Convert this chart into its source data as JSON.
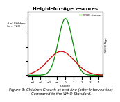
{
  "title": "Height-for-Age z-scores",
  "xlabel": "Z-score",
  "ylabel_left": "# of Children\n(n = 723)",
  "ylabel_right": "WHO Age",
  "legend_label_who": "WHO standar",
  "xlim": [
    -4.5,
    4.5
  ],
  "who_mean": 0.0,
  "who_std": 0.85,
  "study_mean": -0.5,
  "study_std": 1.6,
  "who_color": "#008800",
  "study_color": "#cc0000",
  "background_color": "#ffffff",
  "title_fontsize": 5.0,
  "label_fontsize": 3.2,
  "tick_fontsize": 3.0,
  "who_amplitude": 1.0,
  "study_amplitude": 0.42,
  "caption": "Figure 3: Children Growth at end-line (after Intervention)\nCompared to the WHO Standard.",
  "caption_fontsize": 3.8,
  "linewidth": 0.9
}
